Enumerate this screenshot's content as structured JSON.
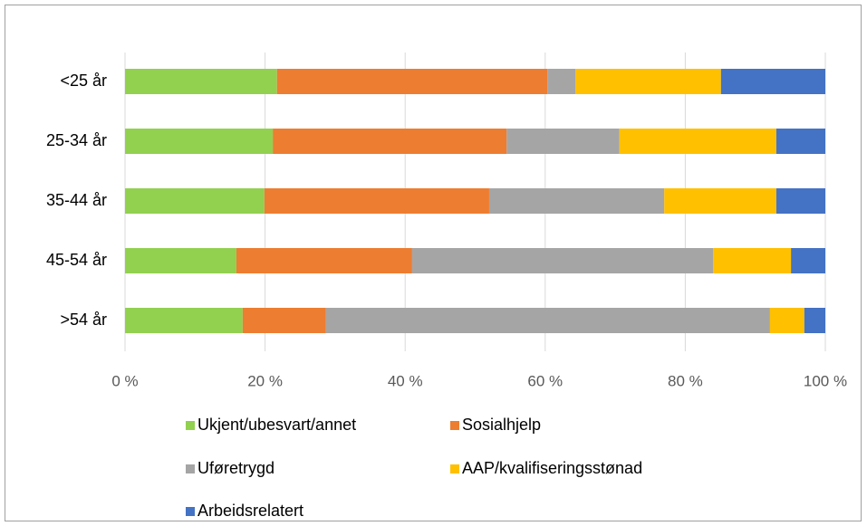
{
  "chart_data": {
    "type": "stacked_barh",
    "categories": [
      "<25 år",
      "25-34 år",
      "35-44 år",
      "45-54 år",
      ">54 år"
    ],
    "series": [
      {
        "name": "Ukjent/ubesvart/annet",
        "color": "#92d050",
        "values": [
          21.7,
          21.1,
          19.9,
          15.9,
          16.8
        ]
      },
      {
        "name": "Sosialhjelp",
        "color": "#ed7d31",
        "values": [
          38.6,
          33.4,
          32.1,
          25.1,
          11.9
        ]
      },
      {
        "name": "Uføretrygd",
        "color": "#a5a5a5",
        "values": [
          4.0,
          16.1,
          25.0,
          43.0,
          63.4
        ]
      },
      {
        "name": "AAP/kvalifiseringsstønad",
        "color": "#ffc000",
        "values": [
          20.8,
          22.4,
          16.0,
          11.1,
          4.9
        ]
      },
      {
        "name": "Arbeidsrelatert",
        "color": "#4472c4",
        "values": [
          14.9,
          7.0,
          7.0,
          4.9,
          3.0
        ]
      }
    ],
    "xlim": [
      0,
      100
    ],
    "xticks": [
      {
        "value": 0,
        "label": "0 %"
      },
      {
        "value": 20,
        "label": "20 %"
      },
      {
        "value": 40,
        "label": "40 %"
      },
      {
        "value": 60,
        "label": "60 %"
      },
      {
        "value": 80,
        "label": "80 %"
      },
      {
        "value": 100,
        "label": "100 %"
      }
    ],
    "grid": true,
    "legend": "bottom"
  }
}
